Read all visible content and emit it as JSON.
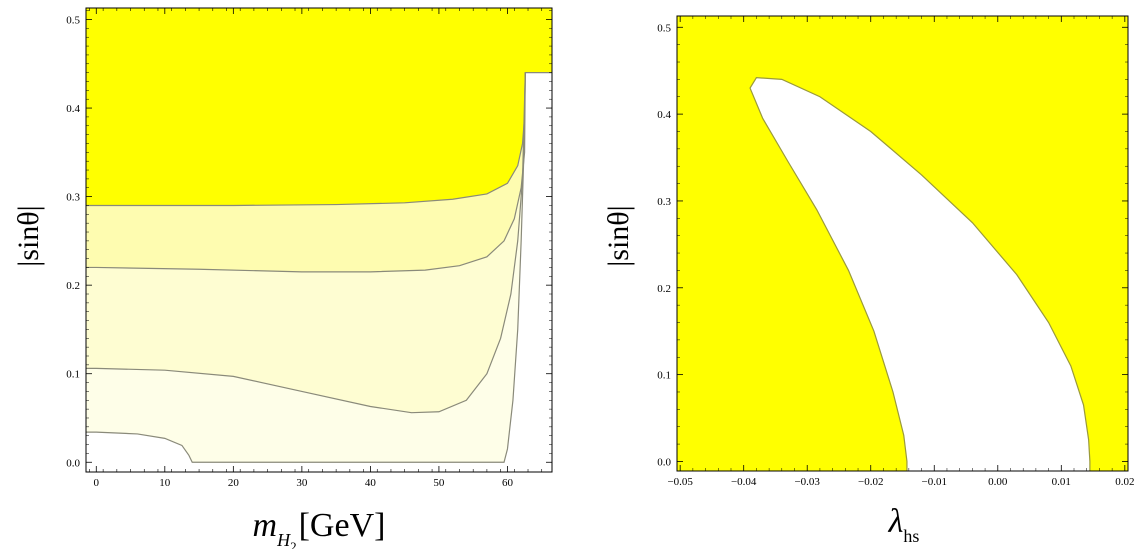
{
  "chart_data": [
    {
      "type": "contour",
      "xlabel": "m_H2 [GeV]",
      "xlabel_main": "m",
      "xlabel_sub": "H",
      "xlabel_subsub": "2",
      "xlabel_unit": "[GeV]",
      "ylabel": "|sinθ|",
      "xlim": [
        -1.5,
        66.5
      ],
      "ylim": [
        -0.011,
        0.513
      ],
      "x_ticks": [
        "0",
        "10",
        "20",
        "30",
        "40",
        "50",
        "60"
      ],
      "x_tick_values": [
        0,
        10,
        20,
        30,
        40,
        50,
        60
      ],
      "y_ticks": [
        "0.0",
        "0.1",
        "0.2",
        "0.3",
        "0.4",
        "0.5"
      ],
      "y_tick_values": [
        0,
        0.1,
        0.2,
        0.3,
        0.4,
        0.5
      ],
      "colors": {
        "excluded": "#ffff00",
        "level3": "#fefcb0",
        "level2": "#fefdd2",
        "level1": "#fefee8",
        "allowed": "#ffffff",
        "contour_line": "#8a8a7a"
      },
      "contours": [
        {
          "level": "excluded",
          "points": [
            [
              0,
              0.29
            ],
            [
              20,
              0.29
            ],
            [
              35,
              0.291
            ],
            [
              45,
              0.293
            ],
            [
              52,
              0.297
            ],
            [
              57,
              0.303
            ],
            [
              60,
              0.315
            ],
            [
              61.5,
              0.335
            ],
            [
              62.2,
              0.36
            ],
            [
              62.5,
              0.39
            ],
            [
              62.6,
              0.44
            ],
            [
              66.5,
              0.44
            ]
          ]
        },
        {
          "level": "level3",
          "points": [
            [
              0,
              0.22
            ],
            [
              15,
              0.218
            ],
            [
              30,
              0.215
            ],
            [
              40,
              0.215
            ],
            [
              48,
              0.217
            ],
            [
              53,
              0.222
            ],
            [
              57,
              0.232
            ],
            [
              59.5,
              0.25
            ],
            [
              61,
              0.275
            ],
            [
              62,
              0.31
            ],
            [
              62.5,
              0.35
            ],
            [
              62.6,
              0.44
            ]
          ]
        },
        {
          "level": "level2",
          "points": [
            [
              0,
              0.106
            ],
            [
              10,
              0.104
            ],
            [
              20,
              0.097
            ],
            [
              30,
              0.08
            ],
            [
              40,
              0.063
            ],
            [
              46,
              0.056
            ],
            [
              50,
              0.057
            ],
            [
              54,
              0.07
            ],
            [
              57,
              0.1
            ],
            [
              59,
              0.14
            ],
            [
              60.5,
              0.19
            ],
            [
              61.5,
              0.25
            ],
            [
              62.2,
              0.32
            ],
            [
              62.6,
              0.44
            ]
          ]
        },
        {
          "level": "level1",
          "points": [
            [
              0,
              0.034
            ],
            [
              6,
              0.032
            ],
            [
              10,
              0.027
            ],
            [
              12.5,
              0.019
            ],
            [
              13.5,
              0.008
            ],
            [
              14,
              0
            ],
            [
              59.5,
              0
            ],
            [
              60,
              0.015
            ],
            [
              60.8,
              0.07
            ],
            [
              61.5,
              0.15
            ],
            [
              62,
              0.25
            ],
            [
              62.4,
              0.35
            ],
            [
              62.6,
              0.44
            ]
          ]
        }
      ]
    },
    {
      "type": "contour",
      "xlabel": "λ_hs",
      "xlabel_main": "λ",
      "xlabel_sub": "hs",
      "ylabel": "|sinθ|",
      "xlim": [
        -0.0505,
        0.0205
      ],
      "ylim": [
        -0.011,
        0.513
      ],
      "x_ticks": [
        "−0.05",
        "−0.04",
        "−0.03",
        "−0.02",
        "−0.01",
        "0.00",
        "0.01",
        "0.02"
      ],
      "x_tick_values": [
        -0.05,
        -0.04,
        -0.03,
        -0.02,
        -0.01,
        0,
        0.01,
        0.02
      ],
      "y_ticks": [
        "0.0",
        "0.1",
        "0.2",
        "0.3",
        "0.4",
        "0.5"
      ],
      "y_tick_values": [
        0,
        0.1,
        0.2,
        0.3,
        0.4,
        0.5
      ],
      "colors": {
        "excluded": "#ffff00",
        "allowed": "#ffffff",
        "contour_line": "#9a9a3a"
      },
      "allowed_region": [
        [
          -0.0143,
          0
        ],
        [
          -0.0148,
          0.03
        ],
        [
          -0.0165,
          0.08
        ],
        [
          -0.0195,
          0.15
        ],
        [
          -0.0235,
          0.22
        ],
        [
          -0.0285,
          0.29
        ],
        [
          -0.033,
          0.345
        ],
        [
          -0.037,
          0.395
        ],
        [
          -0.039,
          0.43
        ],
        [
          -0.038,
          0.442
        ],
        [
          -0.034,
          0.44
        ],
        [
          -0.028,
          0.42
        ],
        [
          -0.02,
          0.38
        ],
        [
          -0.012,
          0.33
        ],
        [
          -0.004,
          0.275
        ],
        [
          0.003,
          0.215
        ],
        [
          0.008,
          0.16
        ],
        [
          0.0115,
          0.11
        ],
        [
          0.0135,
          0.065
        ],
        [
          0.0143,
          0.025
        ],
        [
          0.0145,
          0
        ]
      ]
    }
  ]
}
